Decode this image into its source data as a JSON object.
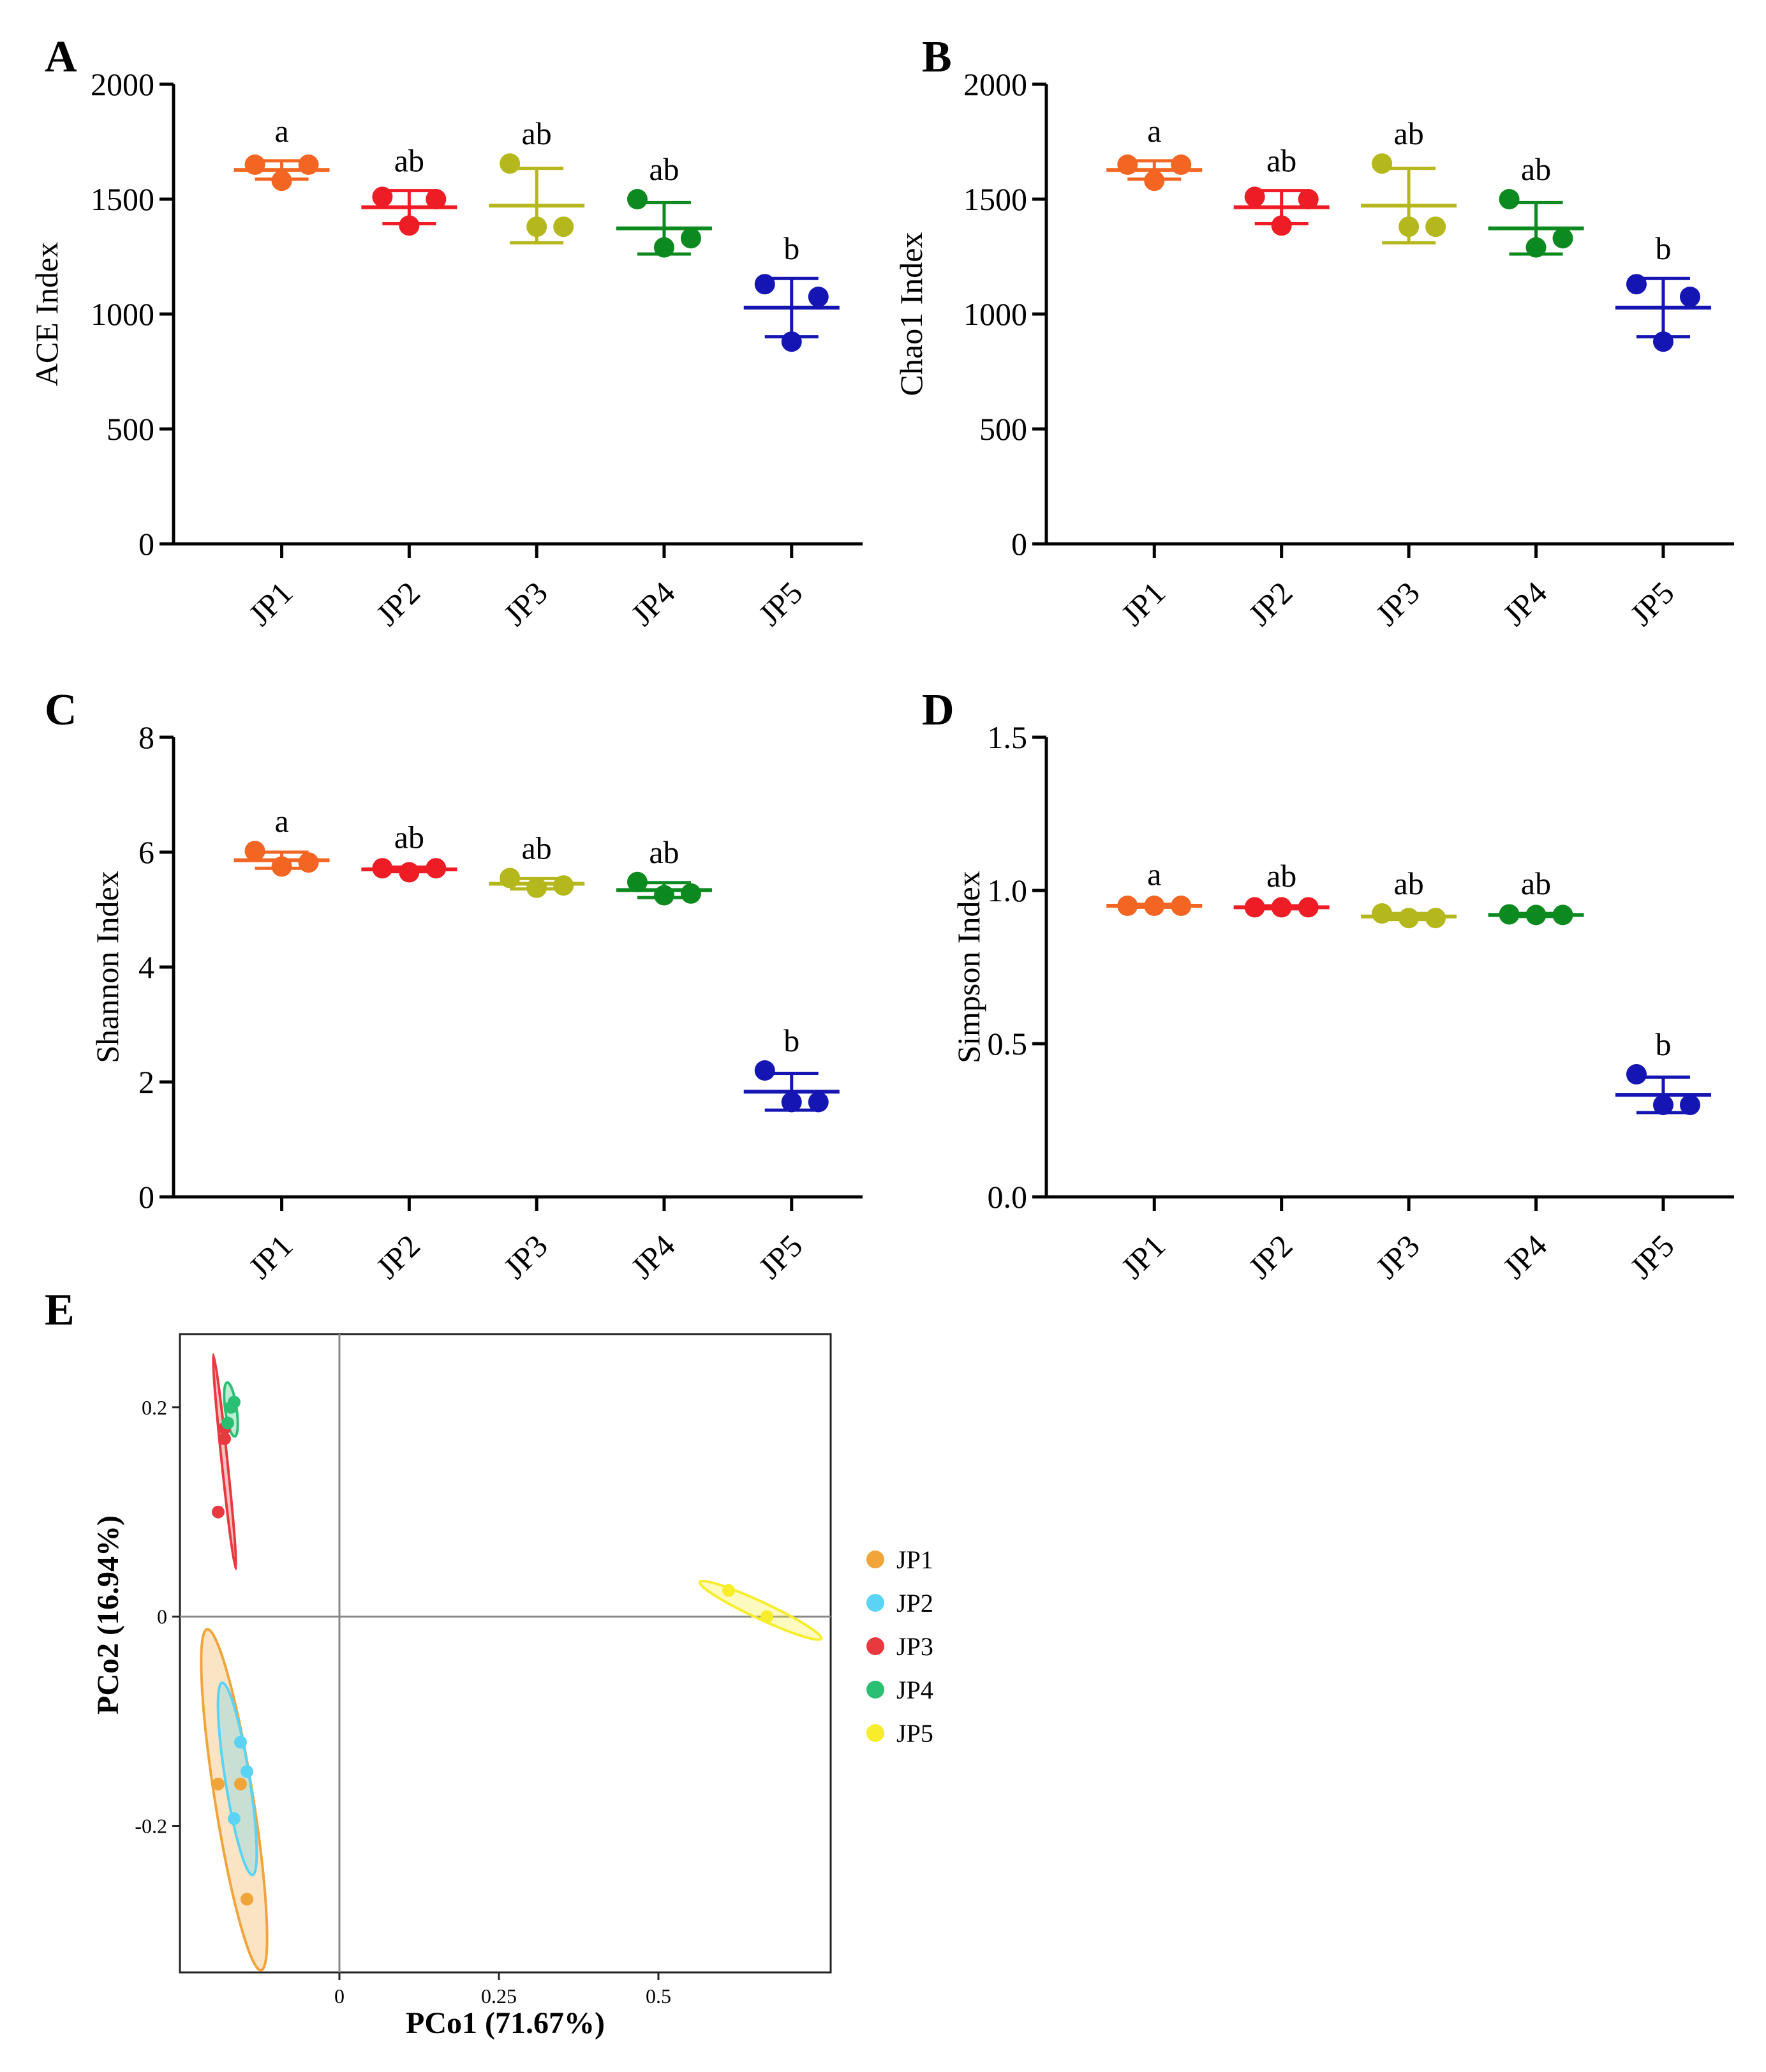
{
  "chart_data": [
    {
      "panel_letter": "A",
      "type": "scatter",
      "subtype": "dot-plot with mean and SD",
      "ylabel": "ACE Index",
      "ylim": [
        0,
        2000
      ],
      "yticks": [
        "0",
        "500",
        "1000",
        "1500",
        "2000"
      ],
      "categories": [
        "JP1",
        "JP2",
        "JP3",
        "JP4",
        "JP5"
      ],
      "colors": [
        "#f26522",
        "#ee1c24",
        "#b5b81c",
        "#0d8a1f",
        "#1515b3"
      ],
      "points": [
        [
          1650,
          1580,
          1650
        ],
        [
          1510,
          1385,
          1500
        ],
        [
          1655,
          1380,
          1380
        ],
        [
          1500,
          1290,
          1330
        ],
        [
          1130,
          880,
          1075
        ]
      ],
      "means": [
        1627,
        1465,
        1472,
        1373,
        1028
      ],
      "sd": [
        40,
        72,
        162,
        112,
        127
      ],
      "letters": [
        "a",
        "ab",
        "ab",
        "ab",
        "b"
      ]
    },
    {
      "panel_letter": "B",
      "type": "scatter",
      "subtype": "dot-plot with mean and SD",
      "ylabel": "Chao1 Index",
      "ylim": [
        0,
        2000
      ],
      "yticks": [
        "0",
        "500",
        "1000",
        "1500",
        "2000"
      ],
      "categories": [
        "JP1",
        "JP2",
        "JP3",
        "JP4",
        "JP5"
      ],
      "colors": [
        "#f26522",
        "#ee1c24",
        "#b5b81c",
        "#0d8a1f",
        "#1515b3"
      ],
      "points": [
        [
          1650,
          1580,
          1650
        ],
        [
          1510,
          1385,
          1500
        ],
        [
          1655,
          1380,
          1380
        ],
        [
          1500,
          1290,
          1330
        ],
        [
          1130,
          880,
          1075
        ]
      ],
      "means": [
        1627,
        1465,
        1472,
        1373,
        1028
      ],
      "sd": [
        40,
        72,
        162,
        112,
        127
      ],
      "letters": [
        "a",
        "ab",
        "ab",
        "ab",
        "b"
      ]
    },
    {
      "panel_letter": "C",
      "type": "scatter",
      "subtype": "dot-plot with mean and SD",
      "ylabel": "Shannon Index",
      "ylim": [
        0,
        8
      ],
      "yticks": [
        "0",
        "2",
        "4",
        "6",
        "8"
      ],
      "categories": [
        "JP1",
        "JP2",
        "JP3",
        "JP4",
        "JP5"
      ],
      "colors": [
        "#f26522",
        "#ee1c24",
        "#b5b81c",
        "#0d8a1f",
        "#1515b3"
      ],
      "points": [
        [
          6.02,
          5.75,
          5.82
        ],
        [
          5.72,
          5.65,
          5.72
        ],
        [
          5.55,
          5.38,
          5.42
        ],
        [
          5.48,
          5.25,
          5.28
        ],
        [
          2.2,
          1.65,
          1.65
        ]
      ],
      "means": [
        5.86,
        5.7,
        5.45,
        5.34,
        1.83
      ],
      "sd": [
        0.14,
        0.04,
        0.09,
        0.13,
        0.32
      ],
      "letters": [
        "a",
        "ab",
        "ab",
        "ab",
        "b"
      ]
    },
    {
      "panel_letter": "D",
      "type": "scatter",
      "subtype": "dot-plot with mean and SD",
      "ylabel": "Simpson Index",
      "ylim": [
        0,
        1.5
      ],
      "yticks": [
        "0.0",
        "0.5",
        "1.0",
        "1.5"
      ],
      "categories": [
        "JP1",
        "JP2",
        "JP3",
        "JP4",
        "JP5"
      ],
      "colors": [
        "#f26522",
        "#ee1c24",
        "#b5b81c",
        "#0d8a1f",
        "#1515b3"
      ],
      "points": [
        [
          0.95,
          0.95,
          0.95
        ],
        [
          0.945,
          0.945,
          0.945
        ],
        [
          0.925,
          0.91,
          0.91
        ],
        [
          0.922,
          0.92,
          0.92
        ],
        [
          0.4,
          0.3,
          0.3
        ]
      ],
      "means": [
        0.95,
        0.945,
        0.915,
        0.92,
        0.333
      ],
      "sd": [
        0.005,
        0.005,
        0.01,
        0.005,
        0.058
      ],
      "letters": [
        "a",
        "ab",
        "ab",
        "ab",
        "b"
      ]
    },
    {
      "panel_letter": "E",
      "type": "scatter",
      "subtype": "PCoA with confidence ellipses",
      "xlabel": "PCo1  (71.67%)",
      "ylabel": "PCo2  (16.94%)",
      "xlim": [
        -0.25,
        0.77
      ],
      "ylim": [
        -0.34,
        0.27
      ],
      "xticks": [
        0,
        0.25,
        0.5
      ],
      "xtick_labels": [
        "0",
        "0.25",
        "0.5"
      ],
      "yticks": [
        -0.2,
        0,
        0.2
      ],
      "ytick_labels": [
        "-0.2",
        "0",
        "0.2"
      ],
      "legend_position": "right",
      "series": [
        {
          "name": "JP1",
          "color": "#f0a43a",
          "points": [
            [
              -0.19,
              -0.16
            ],
            [
              -0.155,
              -0.16
            ],
            [
              -0.145,
              -0.27
            ]
          ],
          "ellipse": {
            "cx": -0.165,
            "cy": -0.175,
            "rx": 0.03,
            "ry": 0.165,
            "angle": -9
          }
        },
        {
          "name": "JP2",
          "color": "#5bd3f5",
          "points": [
            [
              -0.155,
              -0.12
            ],
            [
              -0.145,
              -0.148
            ],
            [
              -0.165,
              -0.193
            ]
          ],
          "ellipse": {
            "cx": -0.16,
            "cy": -0.155,
            "rx": 0.019,
            "ry": 0.093,
            "angle": -9
          }
        },
        {
          "name": "JP3",
          "color": "#e8393f",
          "points": [
            [
              -0.19,
              0.1
            ],
            [
              -0.18,
              0.17
            ],
            [
              -0.18,
              0.18
            ]
          ],
          "ellipse": {
            "cx": -0.18,
            "cy": 0.148,
            "rx": 0.0045,
            "ry": 0.103,
            "angle": -6
          }
        },
        {
          "name": "JP4",
          "color": "#2bbf73",
          "points": [
            [
              -0.175,
              0.185
            ],
            [
              -0.17,
              0.2
            ],
            [
              -0.165,
              0.205
            ]
          ],
          "ellipse": {
            "cx": -0.17,
            "cy": 0.198,
            "rx": 0.009,
            "ry": 0.026,
            "angle": -8
          }
        },
        {
          "name": "JP5",
          "color": "#f7ed2a",
          "points": [
            [
              0.61,
              0.025
            ],
            [
              0.67,
              0.0
            ]
          ],
          "ellipse": {
            "cx": 0.66,
            "cy": 0.006,
            "rx": 0.105,
            "ry": 0.008,
            "angle": 25
          }
        }
      ]
    }
  ]
}
